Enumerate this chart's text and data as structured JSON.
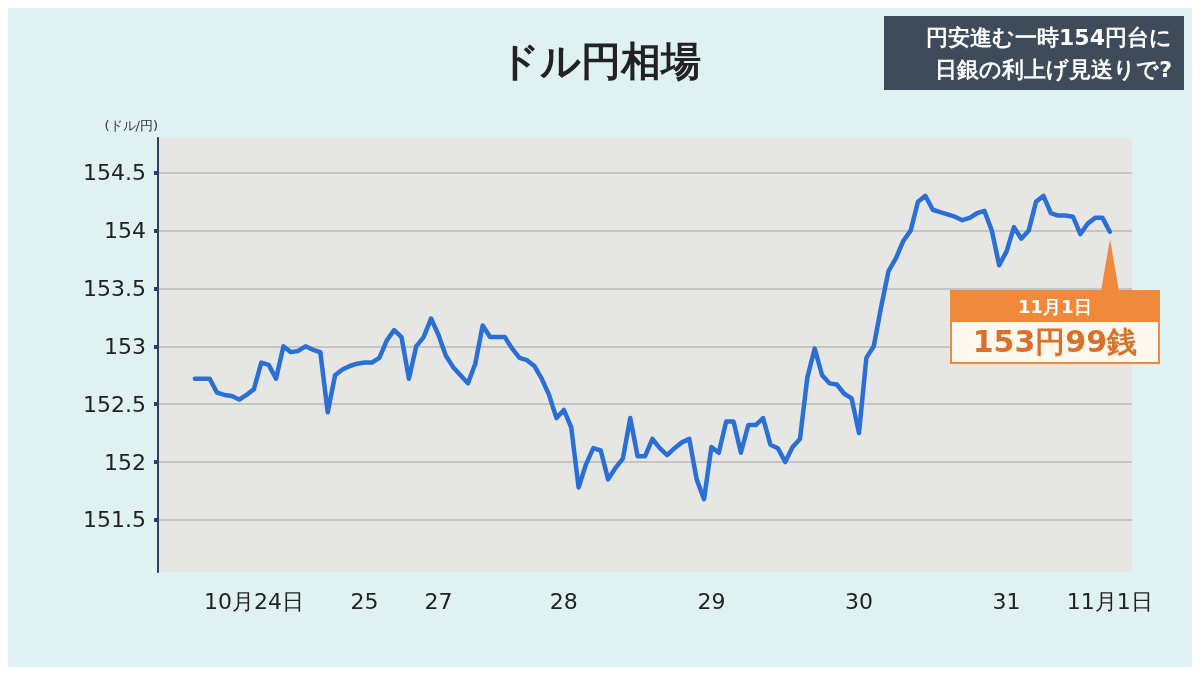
{
  "chart_data": {
    "type": "line",
    "title": "ドル円相場",
    "subtitle": "円安進む一時154円台に",
    "ylabel": "(ドル/円)",
    "categories": [
      null,
      null,
      null,
      null,
      null,
      null,
      null,
      null,
      null,
      null,
      null,
      null,
      null,
      "10月24日",
      null,
      null,
      null,
      null,
      null,
      null,
      null,
      null,
      null,
      null,
      null,
      null,
      null,
      null,
      "25",
      null,
      null,
      null,
      null,
      null,
      null,
      null,
      null,
      null,
      "27",
      null,
      null,
      null,
      null,
      null,
      null,
      null,
      null,
      null,
      null,
      null,
      null,
      null,
      null,
      null,
      null,
      "28",
      null,
      null,
      null,
      null,
      null,
      null,
      null,
      null,
      null,
      null,
      null,
      null,
      null,
      null,
      null,
      null,
      null,
      null,
      null,
      "29",
      null,
      null,
      null,
      null,
      null,
      null,
      null,
      null,
      null,
      null,
      null,
      null,
      null,
      null,
      null,
      null,
      null,
      null,
      null,
      "30",
      null,
      null,
      null,
      null,
      null,
      null,
      null,
      null,
      null,
      null,
      null,
      null,
      null,
      null,
      null,
      null,
      null,
      null,
      null,
      "31",
      null,
      null,
      null,
      null,
      null,
      null,
      null,
      null,
      null,
      null,
      null,
      null,
      null,
      "11月1日",
      null,
      null,
      null
    ],
    "ylim": [
      151.05,
      154.8
    ],
    "yticks": [
      151.5,
      152,
      152.5,
      153,
      153.5,
      154,
      154.5
    ],
    "grid": "y",
    "marker": "none",
    "line_style": "solid",
    "annotations": [
      "日銀の利上げ見送りで?",
      {
        "text": "11月1日\n153円99銭",
        "x": "11月1日",
        "y": 153.99
      }
    ],
    "series": [
      {
        "color": "#2a6fd6",
        "values": [
          null,
          null,
          null,
          null,
          null,
          152.72,
          152.72,
          152.72,
          152.6,
          152.58,
          152.57,
          152.54,
          152.58,
          152.63,
          152.86,
          152.84,
          152.72,
          153.0,
          152.95,
          152.96,
          153.0,
          152.97,
          152.95,
          152.43,
          152.75,
          152.8,
          152.83,
          152.85,
          152.86,
          152.86,
          152.9,
          153.05,
          153.14,
          153.08,
          152.72,
          153.0,
          153.08,
          153.24,
          153.1,
          152.92,
          152.82,
          152.75,
          152.68,
          152.85,
          153.18,
          153.08,
          153.08,
          153.08,
          152.98,
          152.9,
          152.88,
          152.83,
          152.72,
          152.58,
          152.38,
          152.45,
          152.3,
          151.78,
          151.98,
          152.12,
          152.1,
          151.85,
          151.95,
          152.03,
          152.38,
          152.05,
          152.05,
          152.2,
          152.12,
          152.06,
          152.12,
          152.17,
          152.2,
          151.85,
          151.68,
          152.13,
          152.08,
          152.35,
          152.35,
          152.08,
          152.32,
          152.32,
          152.38,
          152.15,
          152.12,
          152.0,
          152.13,
          152.2,
          152.73,
          152.98,
          152.75,
          152.68,
          152.67,
          152.59,
          152.55,
          152.25,
          152.9,
          153.0,
          153.34,
          153.65,
          153.76,
          153.91,
          154.0,
          154.25,
          154.3,
          154.18,
          154.16,
          154.14,
          154.12,
          154.09,
          154.11,
          154.15,
          154.17,
          154.0,
          153.7,
          153.82,
          154.03,
          153.93,
          154.0,
          154.25,
          154.3,
          154.15,
          154.13,
          154.13,
          154.12,
          153.97,
          154.06,
          154.11,
          154.11,
          153.99,
          null,
          null,
          null
        ]
      }
    ]
  }
}
